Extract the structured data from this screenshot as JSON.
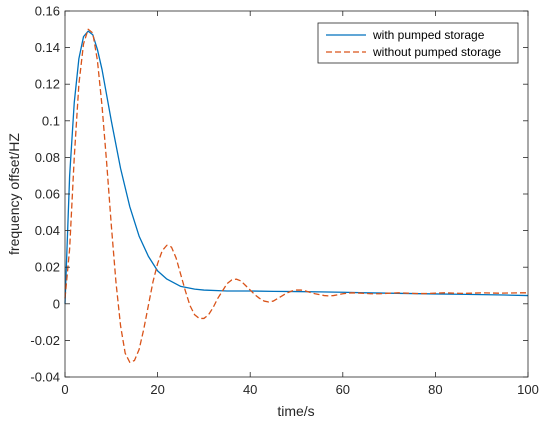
{
  "chart_data": {
    "type": "line",
    "xlabel": "time/s",
    "ylabel": "frequency offset/HZ",
    "xlim": [
      0,
      100
    ],
    "ylim": [
      -0.04,
      0.16
    ],
    "x_ticks": [
      0,
      20,
      40,
      60,
      80,
      100
    ],
    "y_ticks": [
      -0.04,
      -0.02,
      0,
      0.02,
      0.04,
      0.06,
      0.08,
      0.1,
      0.12,
      0.14,
      0.16
    ],
    "legend_position": "top-right",
    "grid": false,
    "series": [
      {
        "name": "with pumped storage",
        "color": "#0072BD",
        "style": "solid",
        "x": [
          0,
          1,
          2,
          3,
          4,
          5,
          6,
          7,
          8,
          10,
          12,
          14,
          16,
          18,
          20,
          22,
          25,
          28,
          30,
          35,
          40,
          45,
          50,
          55,
          60,
          65,
          70,
          75,
          80,
          85,
          90,
          95,
          100
        ],
        "y": [
          0.0,
          0.07,
          0.11,
          0.134,
          0.146,
          0.149,
          0.147,
          0.139,
          0.128,
          0.1,
          0.074,
          0.053,
          0.037,
          0.026,
          0.018,
          0.0135,
          0.0095,
          0.008,
          0.0075,
          0.007,
          0.007,
          0.0068,
          0.0067,
          0.0065,
          0.0063,
          0.006,
          0.0058,
          0.0056,
          0.0054,
          0.0052,
          0.005,
          0.0048,
          0.0045
        ]
      },
      {
        "name": "without pumped storage",
        "color": "#D95319",
        "style": "dashed",
        "x": [
          0,
          1,
          2,
          3,
          4,
          5,
          6,
          7,
          8,
          9,
          10,
          11,
          12,
          13,
          14,
          15,
          16,
          17,
          18,
          19,
          20,
          21,
          22,
          23,
          24,
          25,
          26,
          27,
          28,
          29,
          30,
          31,
          32,
          33,
          34,
          35,
          36,
          37,
          38,
          39,
          40,
          41,
          42,
          43,
          44,
          45,
          46,
          47,
          48,
          49,
          50,
          51,
          52,
          53,
          54,
          55,
          56,
          57,
          58,
          59,
          60,
          62,
          64,
          66,
          68,
          70,
          72,
          74,
          76,
          78,
          80,
          82,
          84,
          86,
          88,
          90,
          92,
          94,
          96,
          98,
          100
        ],
        "y": [
          0.003,
          0.03,
          0.08,
          0.12,
          0.142,
          0.15,
          0.148,
          0.133,
          0.108,
          0.077,
          0.043,
          0.012,
          -0.012,
          -0.027,
          -0.032,
          -0.031,
          -0.025,
          -0.014,
          -0.001,
          0.012,
          0.022,
          0.029,
          0.032,
          0.031,
          0.025,
          0.016,
          0.007,
          -0.001,
          -0.006,
          -0.008,
          -0.008,
          -0.006,
          -0.002,
          0.003,
          0.007,
          0.011,
          0.013,
          0.0135,
          0.0125,
          0.01,
          0.0075,
          0.005,
          0.003,
          0.0015,
          0.001,
          0.0015,
          0.003,
          0.0045,
          0.006,
          0.007,
          0.0075,
          0.0075,
          0.007,
          0.0062,
          0.0055,
          0.005,
          0.0045,
          0.0043,
          0.0045,
          0.005,
          0.0055,
          0.006,
          0.0058,
          0.0055,
          0.0055,
          0.0058,
          0.006,
          0.0058,
          0.0056,
          0.0056,
          0.0058,
          0.006,
          0.0058,
          0.0057,
          0.0058,
          0.006,
          0.0059,
          0.0058,
          0.0059,
          0.006,
          0.006
        ]
      }
    ]
  }
}
